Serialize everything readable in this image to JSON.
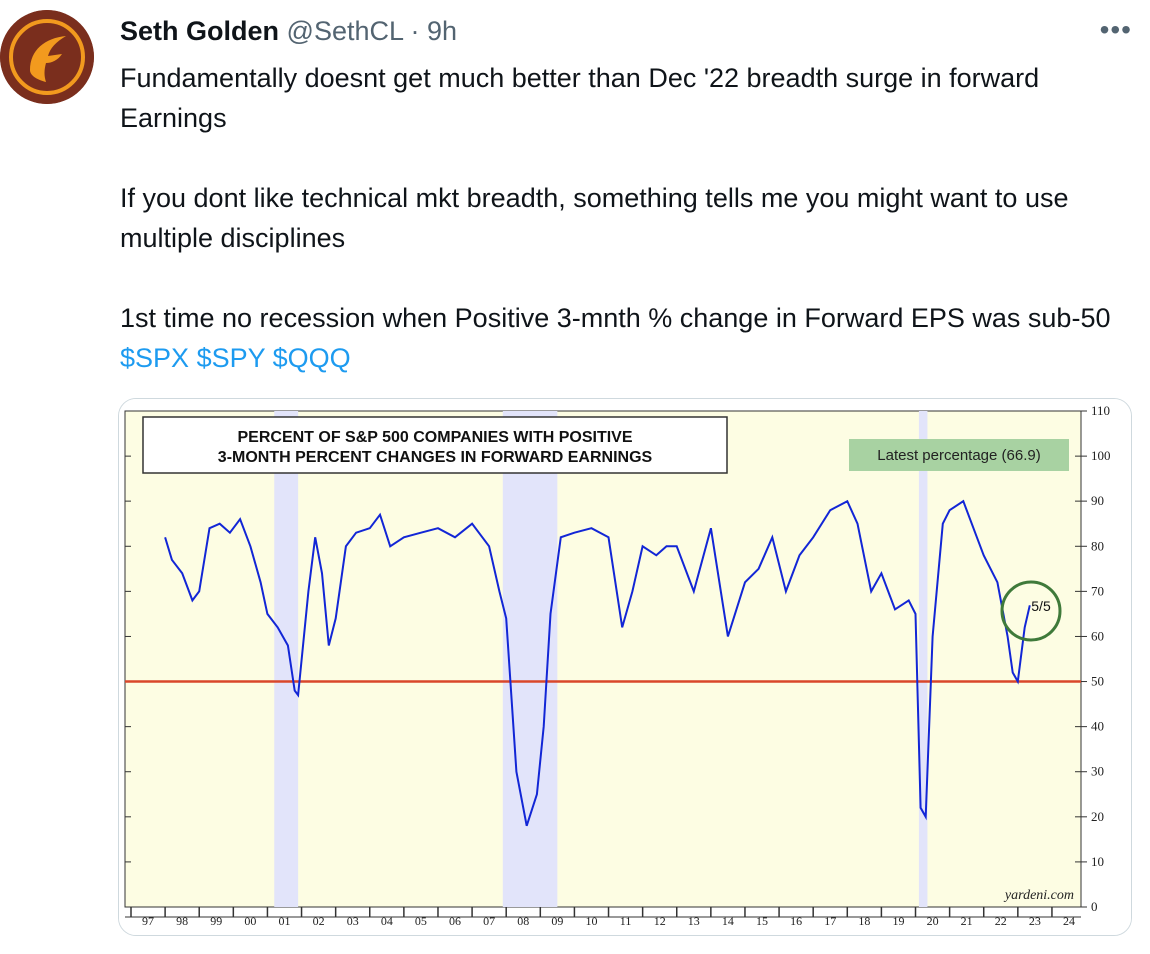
{
  "tweet": {
    "author_name": "Seth Golden",
    "handle": "@SethCL",
    "separator": "·",
    "time": "9h",
    "more_label": "•••",
    "line1": "Fundamentally doesnt get much better than Dec '22 breadth surge in forward Earnings",
    "line2": "If you dont like technical mkt breadth, something tells me you might want to use multiple disciplines",
    "line3_text": "1st time no recession when Positive 3-mnth % change in Forward EPS was sub-50 ",
    "cashtags": [
      "$SPX",
      "$SPY",
      "$QQQ"
    ]
  },
  "chart_data": {
    "type": "line",
    "title_line1": "PERCENT OF S&P 500 COMPANIES WITH POSITIVE",
    "title_line2": "3-MONTH PERCENT CHANGES IN FORWARD EARNINGS",
    "badge": "Latest percentage (66.9)",
    "annotation": "5/5",
    "source": "yardeni.com",
    "x_ticks": [
      "97",
      "98",
      "99",
      "00",
      "01",
      "02",
      "03",
      "04",
      "05",
      "06",
      "07",
      "08",
      "09",
      "10",
      "11",
      "12",
      "13",
      "14",
      "15",
      "16",
      "17",
      "18",
      "19",
      "20",
      "21",
      "22",
      "23",
      "24"
    ],
    "y_ticks": [
      "0",
      "10",
      "20",
      "30",
      "40",
      "50",
      "60",
      "70",
      "80",
      "90",
      "100",
      "110"
    ],
    "ylim": [
      0,
      110
    ],
    "xlim": [
      1997,
      2024.5
    ],
    "reference_line": 50,
    "recessions": [
      [
        2001.2,
        2001.9
      ],
      [
        2007.9,
        2009.5
      ],
      [
        2020.1,
        2020.35
      ]
    ],
    "series": [
      {
        "x": [
          1998.0,
          1998.2,
          1998.5,
          1998.8,
          1999.0,
          1999.3,
          1999.6,
          1999.9,
          2000.2,
          2000.5,
          2000.8,
          2001.0,
          2001.3,
          2001.6,
          2001.8,
          2001.9,
          2002.2,
          2002.4,
          2002.6,
          2002.8,
          2003.0,
          2003.3,
          2003.6,
          2004.0,
          2004.3,
          2004.6,
          2005.0,
          2005.5,
          2006.0,
          2006.5,
          2007.0,
          2007.5,
          2007.8,
          2008.0,
          2008.3,
          2008.6,
          2008.9,
          2009.1,
          2009.3,
          2009.6,
          2010.0,
          2010.5,
          2011.0,
          2011.4,
          2011.7,
          2012.0,
          2012.4,
          2012.7,
          2013.0,
          2013.5,
          2014.0,
          2014.5,
          2015.0,
          2015.4,
          2015.8,
          2016.2,
          2016.6,
          2017.0,
          2017.5,
          2018.0,
          2018.3,
          2018.7,
          2019.0,
          2019.4,
          2019.8,
          2020.0,
          2020.15,
          2020.3,
          2020.5,
          2020.8,
          2021.0,
          2021.4,
          2021.8,
          2022.0,
          2022.4,
          2022.7,
          2022.85,
          2023.0,
          2023.2,
          2023.35
        ],
        "y": [
          82,
          77,
          74,
          68,
          70,
          84,
          85,
          83,
          86,
          80,
          72,
          65,
          62,
          58,
          48,
          47,
          70,
          82,
          74,
          58,
          64,
          80,
          83,
          84,
          87,
          80,
          82,
          83,
          84,
          82,
          85,
          80,
          70,
          64,
          30,
          18,
          25,
          40,
          65,
          82,
          83,
          84,
          82,
          62,
          70,
          80,
          78,
          80,
          80,
          70,
          84,
          60,
          72,
          75,
          82,
          70,
          78,
          82,
          88,
          90,
          85,
          70,
          74,
          66,
          68,
          65,
          22,
          20,
          60,
          85,
          88,
          90,
          82,
          78,
          72,
          60,
          52,
          50,
          62,
          66.9
        ]
      }
    ]
  }
}
